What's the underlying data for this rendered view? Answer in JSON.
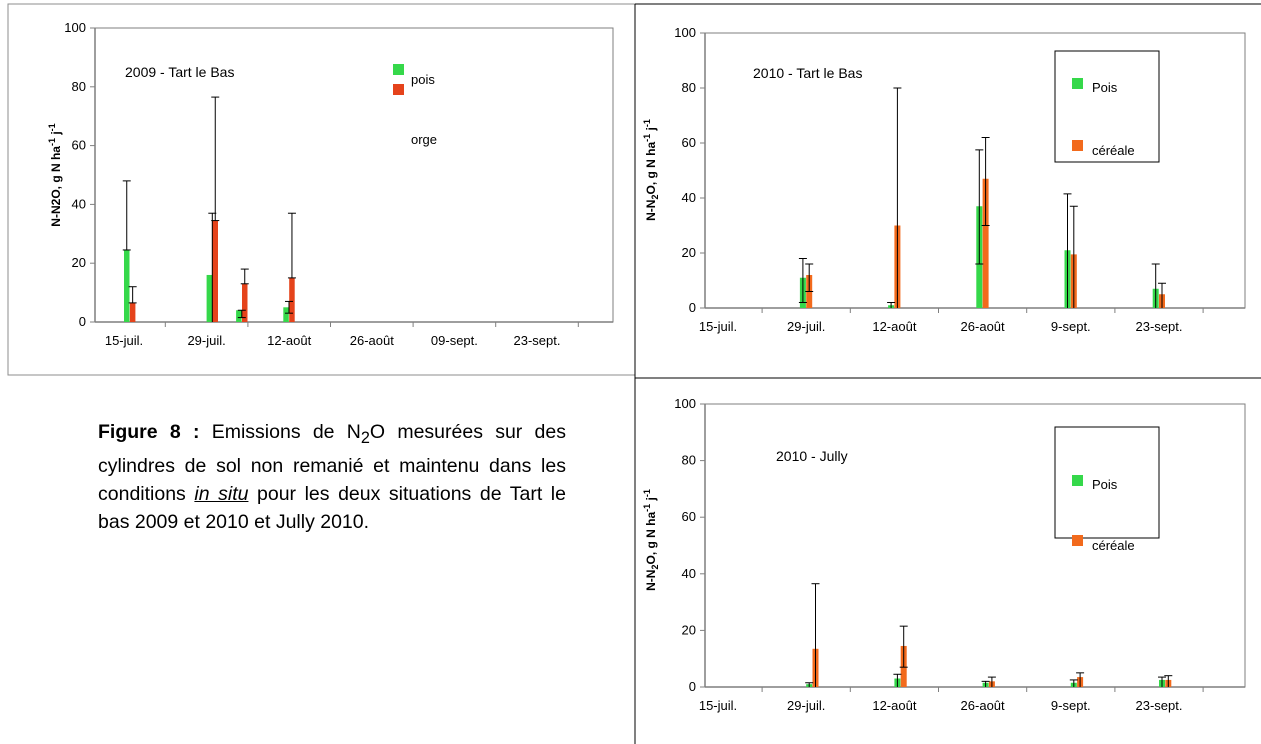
{
  "caption": {
    "label": "Figure 8 :",
    "part1": " Emissions de N",
    "sub": "2",
    "part2": "O mesurées sur des cylindres de sol non remanié et maintenu dans les conditions ",
    "italic": "in situ",
    "part3": " pour les deux situations de Tart le bas 2009 et 2010 et Jully 2010."
  },
  "colors": {
    "pois": "#35d84a",
    "cereale": "#f26a1c",
    "orge": "#e5431b"
  },
  "chart_data": [
    {
      "type": "bar",
      "annotation": "2009 - Tart le Bas",
      "ylabel_main": "N-N2O, g N ha",
      "ylabel_sup1": "-1",
      "ylabel_mid": " j",
      "ylabel_sup2": "-1",
      "categories": [
        "15-juil.",
        "29-juil.",
        "12-août",
        "26-août",
        "09-sept.",
        "23-sept."
      ],
      "ylim": [
        0,
        100
      ],
      "yticks": [
        0,
        20,
        40,
        60,
        80,
        100
      ],
      "x_days": [
        0,
        14,
        28,
        42,
        56,
        70
      ],
      "legend": {
        "position": "top-right",
        "boxed": false
      },
      "series": [
        {
          "name": "pois",
          "color": "#35d84a",
          "points": [
            {
              "day": 0,
              "value": 24.5,
              "err": 48
            },
            {
              "day": 14,
              "value": 16,
              "err": 0
            },
            {
              "day": 19,
              "value": 4,
              "err": 0
            },
            {
              "day": 27,
              "value": 5,
              "err": 0
            }
          ]
        },
        {
          "name": "orge",
          "color": "#e5431b",
          "points": [
            {
              "day": 1,
              "value": 6.5,
              "err": 12
            },
            {
              "day": 15,
              "value": 34.5,
              "err": 76.5
            },
            {
              "day": 20,
              "value": 13,
              "err": 18
            },
            {
              "day": 28,
              "value": 15,
              "err": 37
            }
          ]
        }
      ],
      "extra_whiskers": [
        {
          "day": 14.5,
          "top": 37,
          "bottom": 0
        },
        {
          "day": 19.5,
          "top": 4,
          "bottom": 1.5
        },
        {
          "day": 27.5,
          "top": 7,
          "bottom": 3
        }
      ]
    },
    {
      "type": "bar",
      "annotation": "2010 - Tart le Bas",
      "ylabel_main": "N-N",
      "ylabel_sub": "2",
      "ylabel_rest": "O, g N ha",
      "ylabel_sup1": "-1",
      "ylabel_mid": " j",
      "ylabel_sup2": "-1",
      "categories": [
        "15-juil.",
        "29-juil.",
        "12-août",
        "26-août",
        "9-sept.",
        "23-sept."
      ],
      "ylim": [
        0,
        100
      ],
      "yticks": [
        0,
        20,
        40,
        60,
        80,
        100
      ],
      "x_days": [
        0,
        14,
        28,
        42,
        56,
        70
      ],
      "legend": {
        "position": "top-right",
        "boxed": true
      },
      "series": [
        {
          "name": "Pois",
          "color": "#35d84a",
          "points": [
            {
              "day": 13,
              "value": 11,
              "err_lo": 2,
              "err_hi": 18
            },
            {
              "day": 27,
              "value": 1,
              "err_lo": 0,
              "err_hi": 2
            },
            {
              "day": 41,
              "value": 37,
              "err_lo": 16,
              "err_hi": 57.5
            },
            {
              "day": 55,
              "value": 21,
              "err_lo": 0,
              "err_hi": 41.5
            },
            {
              "day": 69,
              "value": 7,
              "err_lo": 0,
              "err_hi": 16
            }
          ]
        },
        {
          "name": "céréale",
          "color": "#f26a1c",
          "points": [
            {
              "day": 14,
              "value": 12,
              "err_lo": 6,
              "err_hi": 16
            },
            {
              "day": 28,
              "value": 30,
              "err_lo": 0,
              "err_hi": 80
            },
            {
              "day": 42,
              "value": 47,
              "err_lo": 30,
              "err_hi": 62
            },
            {
              "day": 56,
              "value": 19.5,
              "err_lo": 0,
              "err_hi": 37
            },
            {
              "day": 70,
              "value": 5,
              "err_lo": 0,
              "err_hi": 9
            }
          ]
        }
      ]
    },
    {
      "type": "bar",
      "annotation": "2010 - Jully",
      "ylabel_main": "N-N",
      "ylabel_sub": "2",
      "ylabel_rest": "O, g N ha",
      "ylabel_sup1": "-1",
      "ylabel_mid": " j",
      "ylabel_sup2": "-1",
      "categories": [
        "15-juil.",
        "29-juil.",
        "12-août",
        "26-août",
        "9-sept.",
        "23-sept."
      ],
      "ylim": [
        0,
        100
      ],
      "yticks": [
        0,
        20,
        40,
        60,
        80,
        100
      ],
      "x_days": [
        0,
        14,
        28,
        42,
        56,
        70
      ],
      "legend": {
        "position": "top-right",
        "boxed": true
      },
      "series": [
        {
          "name": "Pois",
          "color": "#35d84a",
          "points": [
            {
              "day": 14,
              "value": 1,
              "err_lo": 0,
              "err_hi": 1.5
            },
            {
              "day": 28,
              "value": 3,
              "err_lo": 0,
              "err_hi": 4.5
            },
            {
              "day": 42,
              "value": 1.5,
              "err_lo": 0,
              "err_hi": 2
            },
            {
              "day": 56,
              "value": 1.5,
              "err_lo": 0,
              "err_hi": 2.5
            },
            {
              "day": 70,
              "value": 2.5,
              "err_lo": 0,
              "err_hi": 3.5
            }
          ]
        },
        {
          "name": "céréale",
          "color": "#f26a1c",
          "points": [
            {
              "day": 15,
              "value": 13.5,
              "err_lo": 0,
              "err_hi": 36.5
            },
            {
              "day": 29,
              "value": 14.5,
              "err_lo": 7,
              "err_hi": 21.5
            },
            {
              "day": 43,
              "value": 2,
              "err_lo": 0,
              "err_hi": 3.5
            },
            {
              "day": 57,
              "value": 3.5,
              "err_lo": 0,
              "err_hi": 5
            },
            {
              "day": 71,
              "value": 2.5,
              "err_lo": 0,
              "err_hi": 4
            }
          ]
        }
      ]
    }
  ]
}
